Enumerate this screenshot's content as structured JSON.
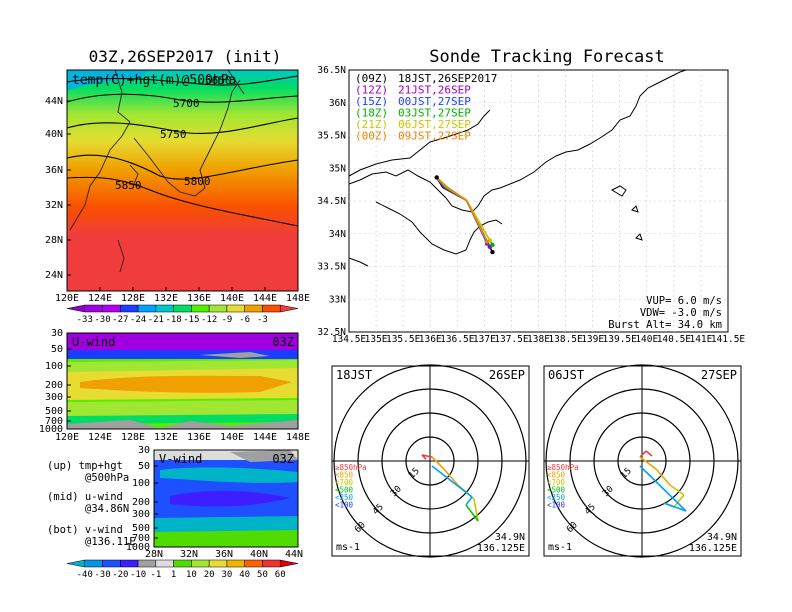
{
  "left_title": "03Z,26SEP2017 (init)",
  "right_title": "Sonde Tracking Forecast",
  "map500": {
    "label": "temp(C)+hgt(m)@500hPa",
    "lat_ticks": [
      "44N",
      "40N",
      "36N",
      "32N",
      "28N",
      "24N"
    ],
    "lon_ticks": [
      "120E",
      "124E",
      "128E",
      "132E",
      "136E",
      "140E",
      "144E",
      "148E"
    ],
    "contour_labels": [
      "5650",
      "5700",
      "5750",
      "5800",
      "5850"
    ]
  },
  "temp_colorbar": {
    "labels": [
      "-33",
      "-30",
      "-27",
      "-24",
      "-21",
      "-18",
      "-15",
      "-12",
      "-9",
      "-6",
      "-3"
    ],
    "colors": [
      "#8c00d0",
      "#a000e0",
      "#b400f0",
      "#1e3cff",
      "#00a0ff",
      "#00c8c8",
      "#00dc64",
      "#50f000",
      "#a0e632",
      "#e6dc32",
      "#f0a000",
      "#fa5000",
      "#f03c3c"
    ]
  },
  "uwind": {
    "label": "U-wind",
    "time": "03Z",
    "p_ticks": [
      "30",
      "50",
      "100",
      "200",
      "300",
      "500",
      "700",
      "1000"
    ],
    "lon_ticks": [
      "120E",
      "124E",
      "128E",
      "132E",
      "136E",
      "140E",
      "144E",
      "148E"
    ]
  },
  "vwind": {
    "label": "V-wind",
    "time": "03Z",
    "p_ticks": [
      "30",
      "50",
      "100",
      "200",
      "300",
      "500",
      "700",
      "1000"
    ],
    "lat_ticks": [
      "28N",
      "32N",
      "36N",
      "40N",
      "44N"
    ]
  },
  "notes": [
    {
      "a": "(up) tmp+hgt",
      "b": "@500hPa"
    },
    {
      "a": "(mid) u-wind",
      "b": "@34.86N"
    },
    {
      "a": "(bot) v-wind",
      "b": "@136.11E"
    }
  ],
  "wind_colorbar": {
    "labels": [
      "-40",
      "-30",
      "-20",
      "-10",
      "-1",
      "1",
      "10",
      "20",
      "30",
      "40",
      "50",
      "60"
    ],
    "colors": [
      "#00b4c8",
      "#0096e6",
      "#1e50ff",
      "#3c1eff",
      "#a0a0a0",
      "#dcdcdc",
      "#50dc00",
      "#a0e632",
      "#e6dc32",
      "#f0b400",
      "#fa6400",
      "#f03232",
      "#e00000"
    ]
  },
  "track": {
    "legend": [
      {
        "code": "(09Z)",
        "time": "18JST,26SEP2017",
        "color": "#000000"
      },
      {
        "code": "(12Z)",
        "time": "21JST,26SEP",
        "color": "#a000c8"
      },
      {
        "code": "(15Z)",
        "time": "00JST,27SEP",
        "color": "#1e3cff"
      },
      {
        "code": "(18Z)",
        "time": "03JST,27SEP",
        "color": "#00b400"
      },
      {
        "code": "(21Z)",
        "time": "06JST,27SEP",
        "color": "#c8c800"
      },
      {
        "code": "(00Z)",
        "time": "09JST,27SEP",
        "color": "#f08200"
      }
    ],
    "lat_ticks": [
      "36.5N",
      "36N",
      "35.5N",
      "35N",
      "34.5N",
      "34N",
      "33.5N",
      "33N",
      "32.5N"
    ],
    "lon_ticks": [
      "134.5E",
      "135E",
      "135.5E",
      "136E",
      "136.5E",
      "137E",
      "137.5E",
      "138E",
      "138.5E",
      "139E",
      "139.5E",
      "140E",
      "140.5E",
      "141E",
      "141.5E"
    ],
    "info": [
      "VUP= 6.0 m/s",
      "VDW= -3.0 m/s",
      "Burst Alt= 34.0 km"
    ],
    "lon_range": [
      134.5,
      141.5
    ],
    "lat_range": [
      32.5,
      36.5
    ],
    "launch": [
      136.12,
      34.86
    ]
  },
  "hodo_left": {
    "jst": "18JST",
    "date": "26SEP",
    "loc1": "34.9N",
    "loc2": "136.125E",
    "unit": "ms-1",
    "rings": [
      "15",
      "30",
      "45",
      "60"
    ]
  },
  "hodo_right": {
    "jst": "06JST",
    "date": "27SEP",
    "loc1": "34.9N",
    "loc2": "136.125E",
    "unit": "ms-1",
    "rings": [
      "15",
      "30",
      "45",
      "60"
    ]
  },
  "hodo_legend": [
    {
      "label": "≥850hPa",
      "color": "#f03c3c"
    },
    {
      "label": "<850",
      "color": "#f0a000"
    },
    {
      "label": "<700",
      "color": "#c8c800"
    },
    {
      "label": "<500",
      "color": "#00c800"
    },
    {
      "label": "<250",
      "color": "#00a0ff"
    },
    {
      "label": "<100",
      "color": "#1e3cff"
    }
  ]
}
